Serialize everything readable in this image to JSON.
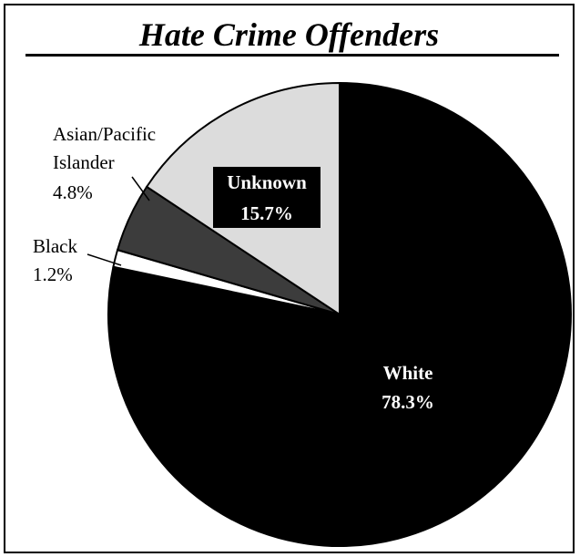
{
  "chart_data": {
    "type": "pie",
    "title": "Hate Crime Offenders",
    "slices": [
      {
        "label": "White",
        "value": 78.3,
        "value_label": "78.3%",
        "color": "#000000",
        "stroke": "#000000",
        "text_color": "#ffffff",
        "label_placement": "inside"
      },
      {
        "label": "Black",
        "value": 1.2,
        "value_label": "1.2%",
        "color": "#ffffff",
        "stroke": "#000000",
        "text_color": "#000000",
        "label_placement": "outside"
      },
      {
        "label": "Asian/Pacific Islander",
        "label_lines": [
          "Asian/Pacific",
          "Islander"
        ],
        "value": 4.8,
        "value_label": "4.8%",
        "color": "#3c3c3c",
        "stroke": "#000000",
        "text_color": "#000000",
        "label_placement": "outside"
      },
      {
        "label": "Unknown",
        "value": 15.7,
        "value_label": "15.7%",
        "color": "#dcdcdc",
        "stroke": "#000000",
        "text_color": "#ffffff",
        "label_placement": "inside-boxed"
      }
    ],
    "start_angle_deg": 0,
    "direction": "clockwise",
    "legend": "none"
  }
}
